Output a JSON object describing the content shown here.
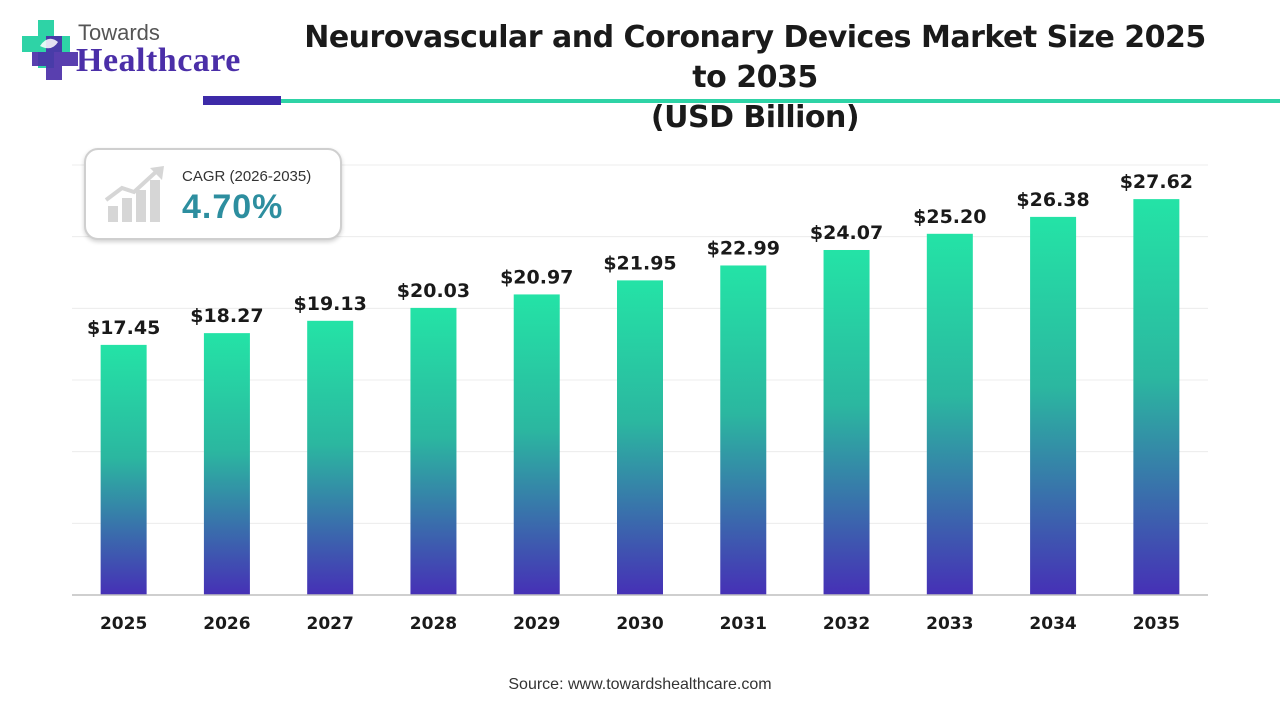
{
  "brand": {
    "line1": "Towards",
    "line2": "Healthcare",
    "colors": {
      "purple": "#4b2fa8",
      "teal": "#2ed3a6"
    }
  },
  "header": {
    "title_line1": "Neurovascular and Coronary Devices Market Size 2025 to 2035",
    "title_line2": "(USD Billion)"
  },
  "cagr": {
    "label": "CAGR (2026-2035)",
    "value": "4.70%",
    "icon": "growth-chart-icon"
  },
  "source": "Source: www.towardshealthcare.com",
  "chart_data": {
    "type": "bar",
    "categories": [
      "2025",
      "2026",
      "2027",
      "2028",
      "2029",
      "2030",
      "2031",
      "2032",
      "2033",
      "2034",
      "2035"
    ],
    "values": [
      17.45,
      18.27,
      19.13,
      20.03,
      20.97,
      21.95,
      22.99,
      24.07,
      25.2,
      26.38,
      27.62
    ],
    "labels": [
      "$17.45",
      "$18.27",
      "$19.13",
      "$20.03",
      "$20.97",
      "$21.95",
      "$22.99",
      "$24.07",
      "$25.20",
      "$26.38",
      "$27.62"
    ],
    "title": "Neurovascular and Coronary Devices Market Size 2025 to 2035 (USD Billion)",
    "xlabel": "",
    "ylabel": "",
    "ylim": [
      0,
      30
    ],
    "grid": true,
    "gradient": {
      "top": "#24e3a6",
      "bottom": "#4630b6"
    }
  }
}
